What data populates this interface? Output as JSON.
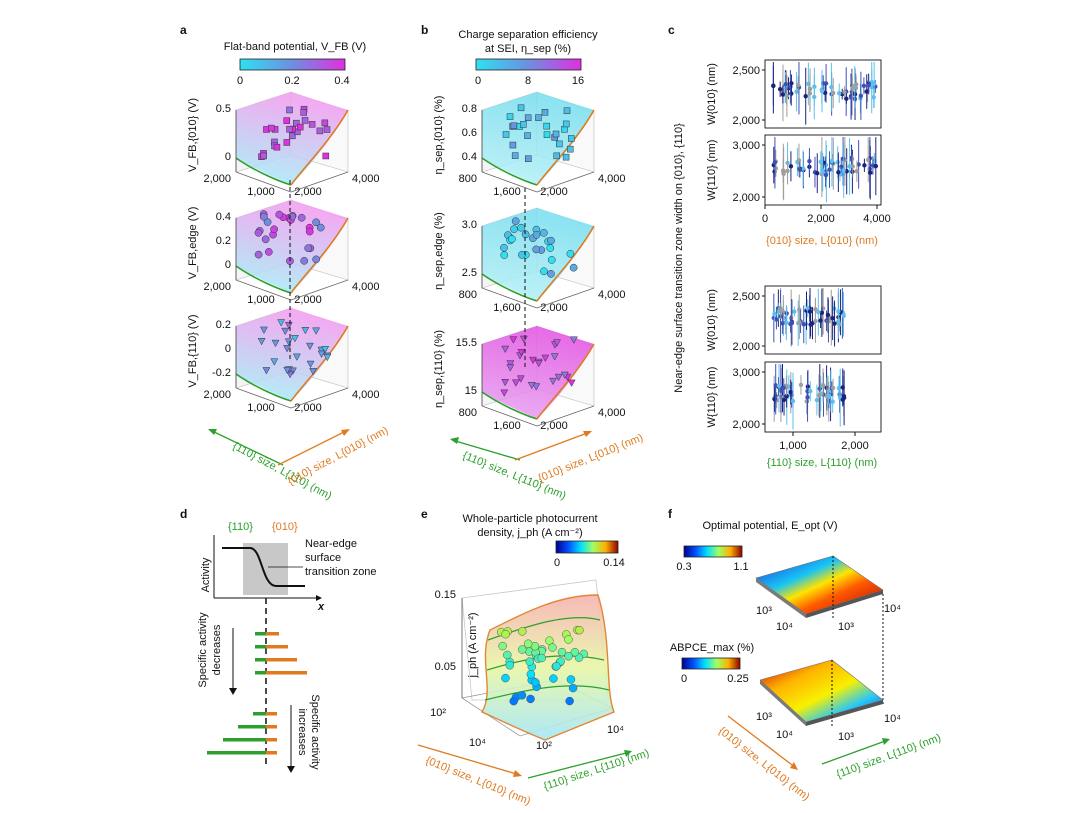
{
  "panels": {
    "a": {
      "label": "a",
      "colorbar": {
        "title": "Flat-band potential, V_FB (V)",
        "ticks": [
          "0",
          "0.2",
          "0.4"
        ]
      },
      "plots": [
        {
          "ylabel": "V_FB,{010} (V)",
          "zticks": [
            "0",
            "0.5"
          ]
        },
        {
          "ylabel": "V_FB,edge (V)",
          "zticks": [
            "0",
            "0.2",
            "0.4"
          ]
        },
        {
          "ylabel": "V_FB,{110} (V)",
          "zticks": [
            "-0.2",
            "0",
            "0.2"
          ]
        }
      ],
      "floor_ticks_left": [
        "2,000",
        "1,000"
      ],
      "floor_ticks_right": [
        "2,000",
        "4,000"
      ],
      "axis_left": "{110} size, L{110} (nm)",
      "axis_right": "{010} size, L{010} (nm)"
    },
    "b": {
      "label": "b",
      "colorbar": {
        "title1": "Charge separation efficiency",
        "title2": "at SEI, η_sep (%)",
        "ticks": [
          "0",
          "8",
          "16"
        ]
      },
      "plots": [
        {
          "ylabel": "η_sep,{010} (%)",
          "zticks": [
            "0.4",
            "0.6",
            "0.8"
          ]
        },
        {
          "ylabel": "η_sep,edge (%)",
          "zticks": [
            "2.5",
            "3.0"
          ]
        },
        {
          "ylabel": "η_sep,{110} (%)",
          "zticks": [
            "15",
            "15.5"
          ]
        }
      ],
      "floor_ticks_left": [
        "800",
        "1,600"
      ],
      "floor_ticks_right": [
        "2,000",
        "4,000"
      ],
      "axis_left": "{110} size, L{110} (nm)",
      "axis_right": "{010} size, L{010} (nm)"
    },
    "c": {
      "label": "c",
      "ylabel": "Near-edge surface transition zone width on {010}, {110}",
      "top_xlabel": "{010} size, L{010} (nm)",
      "bottom_xlabel": "{110} size, L{110} (nm)",
      "top_xticks": [
        "0",
        "2,000",
        "4,000"
      ],
      "bottom_xticks": [
        "1,000",
        "2,000"
      ],
      "w010_label": "W{010} (nm)",
      "w110_label": "W{110} (nm)",
      "w010_ticks": [
        "2,000",
        "2,500"
      ],
      "w110_ticks": [
        "2,000",
        "3,000"
      ]
    },
    "d": {
      "label": "d",
      "face_a": "{110}",
      "face_b": "{010}",
      "zone_label": [
        "Near-edge",
        "surface",
        "transition zone"
      ],
      "yaxis": "Activity",
      "xaxis": "x",
      "decreases": [
        "Specific activity",
        "decreases"
      ],
      "increases": [
        "Specific activity",
        "increases"
      ]
    },
    "e": {
      "label": "e",
      "title1": "Whole-particle photocurrent",
      "title2": "density, j_ph (A cm⁻²)",
      "colorbar_ticks": [
        "0",
        "0.14"
      ],
      "zlabel": "j_ph (A cm⁻²)",
      "zticks": [
        "0.05",
        "0.15"
      ],
      "floor_ticks": [
        "10²",
        "10⁴",
        "10²",
        "10⁴"
      ],
      "axis_left": "{010} size, L{010} (nm)",
      "axis_right": "{110} size, L{110} (nm)"
    },
    "f": {
      "label": "f",
      "title": "Optimal potential, E_opt (V)",
      "cb1_ticks": [
        "0.3",
        "1.1"
      ],
      "cb2_title": "ABPCE_max (%)",
      "cb2_ticks": [
        "0",
        "0.25"
      ],
      "floor_ticks": [
        "10³",
        "10⁴",
        "10³",
        "10⁴"
      ],
      "axis_left": "{010} size, L{010} (nm)",
      "axis_right": "{110} size, L{110} (nm)"
    }
  },
  "chart_data": [
    {
      "type": "scatter",
      "title": "",
      "note": "Panel a: 3D scatters of flat-band potential vs facet sizes",
      "zlabel": "V_FB (V)",
      "colorbar_range": [
        0,
        0.4
      ]
    },
    {
      "type": "scatter",
      "note": "Panel b: charge separation efficiency vs facet sizes",
      "colorbar_range": [
        0,
        16
      ]
    },
    {
      "type": "scatter",
      "note": "Panel c: transition zone widths with error bars",
      "top_xlim": [
        0,
        4000
      ],
      "bottom_xlim": [
        600,
        2300
      ],
      "w010_ylim": [
        1800,
        2500
      ],
      "w110_ylim": [
        2000,
        3500
      ]
    },
    {
      "type": "area",
      "note": "Panel e: whole-particle photocurrent density surface",
      "zlim": [
        0,
        0.15
      ],
      "colorbar_range": [
        0,
        0.14
      ]
    },
    {
      "type": "heatmap",
      "note": "Panel f: optimal potential and ABPCE_max surfaces",
      "cb1_range": [
        0.3,
        1.1
      ],
      "cb2_range": [
        0,
        0.25
      ]
    }
  ]
}
